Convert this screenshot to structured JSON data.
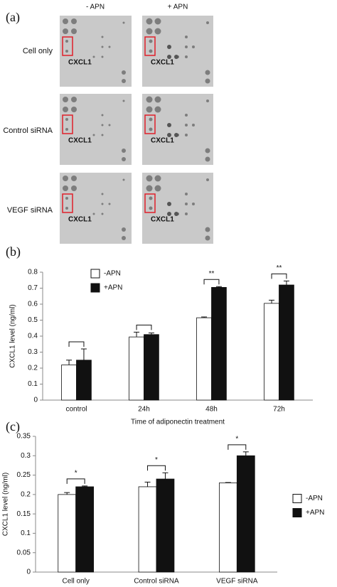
{
  "blot": {
    "panel_label": "(a)",
    "columns": [
      "- APN",
      "+ APN"
    ],
    "rows": [
      {
        "label": "Cell only",
        "marker_left": "CXCL1",
        "marker_right": "CXCL1"
      },
      {
        "label": "Control siRNA",
        "marker_left": "CXCL1",
        "marker_right": "CXCL1"
      },
      {
        "label": "VEGF siRNA",
        "marker_left": "CXCL1",
        "marker_right": "CXCL1"
      }
    ]
  },
  "chart_data": [
    {
      "type": "bar",
      "panel_label": "(b)",
      "x_label": "Time of adiponectin treatment",
      "y_label": "CXCL1 level (ng/ml)",
      "categories": [
        "control",
        "24h",
        "48h",
        "72h"
      ],
      "series": [
        {
          "name": "-APN",
          "color": "#ffffff",
          "values": [
            0.22,
            0.395,
            0.515,
            0.605
          ],
          "errors": [
            0.03,
            0.03,
            0.005,
            0.02
          ]
        },
        {
          "name": "+APN",
          "color": "#111111",
          "values": [
            0.25,
            0.41,
            0.705,
            0.72
          ],
          "errors": [
            0.07,
            0.01,
            0.005,
            0.025
          ]
        }
      ],
      "significance": [
        null,
        null,
        "**",
        "**"
      ],
      "ylim": [
        0,
        0.8
      ],
      "yticks": [
        0,
        0.1,
        0.2,
        0.3,
        0.4,
        0.5,
        0.6,
        0.7,
        0.8
      ],
      "legend": "upper left"
    },
    {
      "type": "bar",
      "panel_label": "(c)",
      "y_label": "CXCL1 level (ng/ml)",
      "categories": [
        "Cell only",
        "Control siRNA",
        "VEGF siRNA"
      ],
      "series": [
        {
          "name": "-APN",
          "color": "#ffffff",
          "values": [
            0.2,
            0.22,
            0.23
          ],
          "errors": [
            0.005,
            0.012,
            0.001
          ]
        },
        {
          "name": "+APN",
          "color": "#111111",
          "values": [
            0.22,
            0.24,
            0.3
          ],
          "errors": [
            0.002,
            0.016,
            0.01
          ]
        }
      ],
      "significance": [
        "*",
        "*",
        "*"
      ],
      "ylim": [
        0,
        0.35
      ],
      "yticks": [
        0,
        0.05,
        0.1,
        0.15,
        0.2,
        0.25,
        0.3,
        0.35
      ],
      "legend": "right"
    }
  ]
}
